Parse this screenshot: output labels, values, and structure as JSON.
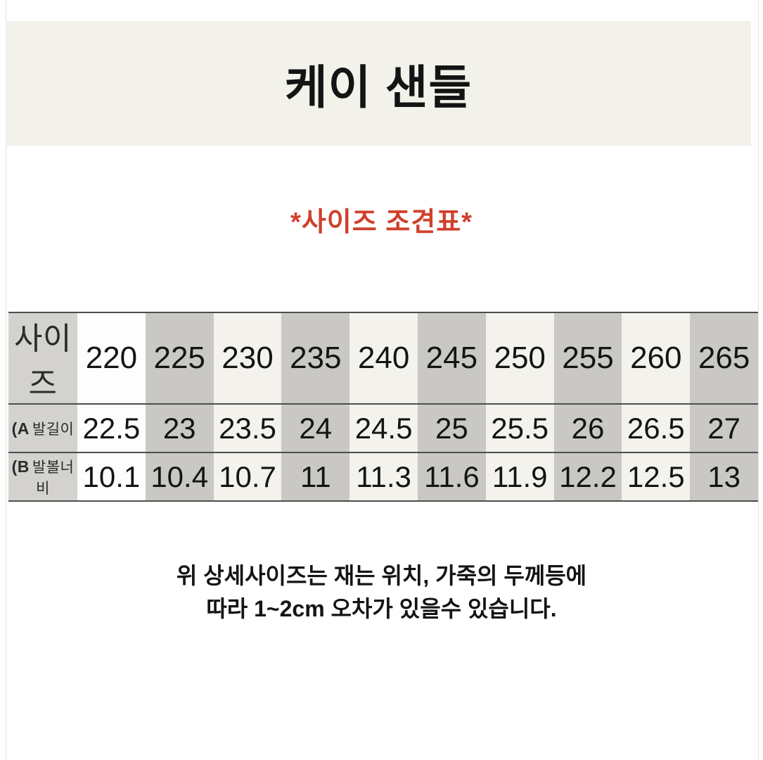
{
  "header": {
    "title": "케이 샌들"
  },
  "subtitle": {
    "text": "*사이즈 조견표*"
  },
  "chart_data": {
    "type": "table",
    "title": "케이 샌들",
    "subtitle": "*사이즈 조견표*",
    "rows": [
      {
        "prefix": "",
        "label": "사이즈",
        "values": [
          "220",
          "225",
          "230",
          "235",
          "240",
          "245",
          "250",
          "255",
          "260",
          "265"
        ]
      },
      {
        "prefix": "(A",
        "label": "발길이",
        "values": [
          "22.5",
          "23",
          "23.5",
          "24",
          "24.5",
          "25",
          "25.5",
          "26",
          "26.5",
          "27"
        ]
      },
      {
        "prefix": "(B",
        "label": "발볼너비",
        "values": [
          "10.1",
          "10.4",
          "10.7",
          "11",
          "11.3",
          "11.6",
          "11.9",
          "12.2",
          "12.5",
          "13"
        ]
      }
    ]
  },
  "note": {
    "line1": "위 상세사이즈는 재는 위치, 가죽의 두께등에",
    "line2": "따라 1~2cm 오차가 있을수 있습니다."
  },
  "colors": {
    "band_bg": "#f2f1ea",
    "accent_red": "#d0402c",
    "column_gray": "#c9c8c5",
    "column_cream": "#f3f2ec",
    "column_white": "#fdfdfd",
    "label_column_gray": "#d3d2cf",
    "rule_line": "#4d4d4d",
    "text": "#141414"
  }
}
